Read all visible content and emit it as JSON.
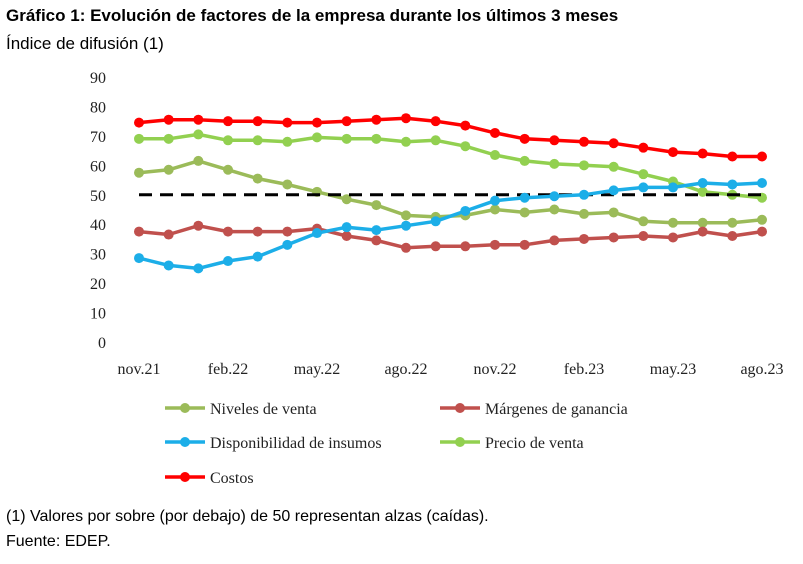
{
  "chart_data": {
    "type": "line",
    "title": "Gráfico 1: Evolución de factores de la empresa durante los últimos 3 meses",
    "ylabel": "Índice de difusión (1)",
    "xlabel": "",
    "ylim": [
      0,
      90
    ],
    "yticks": [
      0,
      10,
      20,
      30,
      40,
      50,
      60,
      70,
      80,
      90
    ],
    "x_tick_labels": [
      "nov.21",
      "feb.22",
      "may.22",
      "ago.22",
      "nov.22",
      "feb.23",
      "may.23",
      "ago.23"
    ],
    "x_tick_every": 3,
    "categories": [
      "nov.21",
      "dic.21",
      "ene.22",
      "feb.22",
      "mar.22",
      "abr.22",
      "may.22",
      "jun.22",
      "jul.22",
      "ago.22",
      "sep.22",
      "oct.22",
      "nov.22",
      "dic.22",
      "ene.23",
      "feb.23",
      "mar.23",
      "abr.23",
      "may.23",
      "jun.23",
      "jul.23",
      "ago.23"
    ],
    "reference_line": {
      "y": 50,
      "style": "dashed",
      "color": "#000000"
    },
    "grid": false,
    "legend_position": "bottom",
    "series": [
      {
        "name": "Niveles de venta",
        "color": "#9bbb59",
        "values": [
          57.5,
          58.5,
          61.5,
          58.5,
          55.5,
          53.5,
          51,
          48.5,
          46.5,
          43,
          42.5,
          43,
          45,
          44,
          45,
          43.5,
          44,
          41,
          40.5,
          40.5,
          40.5,
          41.5
        ]
      },
      {
        "name": "Márgenes de ganancia",
        "color": "#c0504d",
        "values": [
          37.5,
          36.5,
          39.5,
          37.5,
          37.5,
          37.5,
          38.5,
          36,
          34.5,
          32,
          32.5,
          32.5,
          33,
          33,
          34.5,
          35,
          35.5,
          36,
          35.5,
          37.5,
          36,
          37.5
        ]
      },
      {
        "name": "Disponibilidad de insumos",
        "color": "#1caee8",
        "values": [
          28.5,
          26,
          25,
          27.5,
          29,
          33,
          37,
          39,
          38,
          39.5,
          41,
          44.5,
          48,
          49,
          49.5,
          50,
          51.5,
          52.5,
          52.5,
          54,
          53.5,
          54
        ]
      },
      {
        "name": "Precio de venta",
        "color": "#92d050",
        "values": [
          69,
          69,
          70.5,
          68.5,
          68.5,
          68,
          69.5,
          69,
          69,
          68,
          68.5,
          66.5,
          63.5,
          61.5,
          60.5,
          60,
          59.5,
          57,
          54.5,
          51,
          50,
          49
        ]
      },
      {
        "name": "Costos",
        "color": "#ff0000",
        "values": [
          74.5,
          75.5,
          75.5,
          75,
          75,
          74.5,
          74.5,
          75,
          75.5,
          76,
          75,
          73.5,
          71,
          69,
          68.5,
          68,
          67.5,
          66,
          64.5,
          64,
          63,
          63
        ]
      }
    ]
  },
  "footer": {
    "note": "(1) Valores por sobre (por debajo) de 50 representan alzas (caídas).",
    "source": "Fuente: EDEP."
  }
}
